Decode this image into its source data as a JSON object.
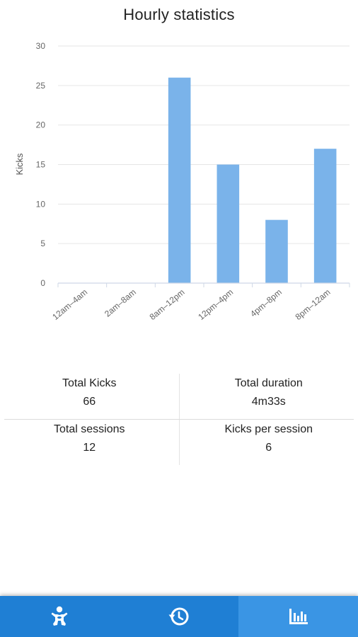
{
  "header": {
    "title": "Hourly statistics"
  },
  "chart_data": {
    "type": "bar",
    "ylabel": "Kicks",
    "xlabel": "",
    "ylim": [
      0,
      30
    ],
    "yticks": [
      0,
      5,
      10,
      15,
      20,
      25,
      30
    ],
    "categories": [
      "12am–4am",
      "2am–8am",
      "8am–12pm",
      "12pm–4pm",
      "4pm–8pm",
      "8pm–12am"
    ],
    "values": [
      0,
      0,
      26,
      15,
      8,
      17
    ],
    "grid": true,
    "bar_color": "#7ab3ea"
  },
  "stats": {
    "total_kicks_label": "Total Kicks",
    "total_kicks_value": "66",
    "total_duration_label": "Total duration",
    "total_duration_value": "4m33s",
    "total_sessions_label": "Total sessions",
    "total_sessions_value": "12",
    "kicks_per_session_label": "Kicks per session",
    "kicks_per_session_value": "6"
  },
  "bottom_nav": {
    "items": [
      {
        "icon": "baby-icon",
        "active": false
      },
      {
        "icon": "history-icon",
        "active": false
      },
      {
        "icon": "bar-chart-icon",
        "active": true
      }
    ],
    "background": "#1f7fd4",
    "active_background": "#3a95e4"
  }
}
